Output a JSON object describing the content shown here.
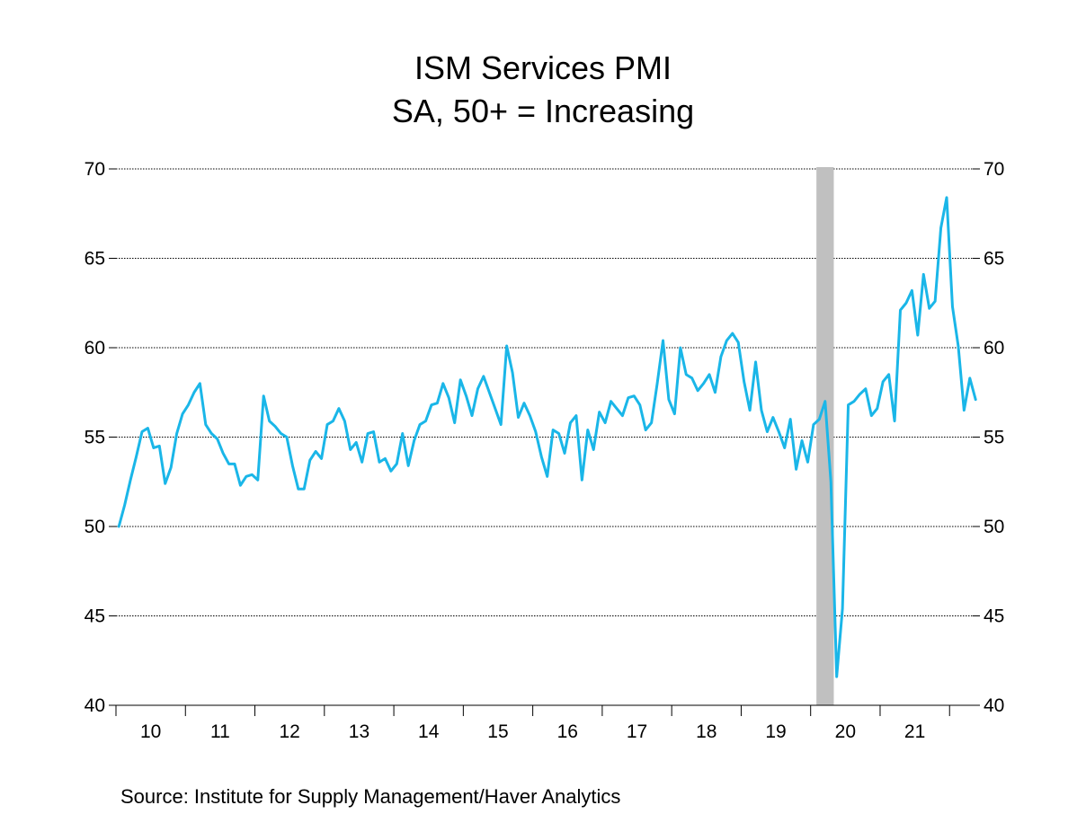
{
  "chart_data": {
    "type": "line",
    "title": "ISM Services PMI",
    "subtitle": "SA, 50+ = Increasing",
    "source": "Source:  Institute for Supply Management/Haver Analytics",
    "ylim": [
      40,
      70
    ],
    "yticks": [
      40,
      45,
      50,
      55,
      60,
      65,
      70
    ],
    "x_tick_labels": [
      "10",
      "11",
      "12",
      "13",
      "14",
      "15",
      "16",
      "17",
      "18",
      "19",
      "20",
      "21"
    ],
    "x_start": "2010-01",
    "x_end": "2022-04",
    "grid": true,
    "recession_shading": {
      "start": "2020-02",
      "end": "2020-04",
      "color": "#c0c0c0"
    },
    "series": [
      {
        "color": "#1ab6e8",
        "values": [
          50.0,
          51.2,
          52.6,
          53.9,
          55.3,
          55.5,
          54.4,
          54.5,
          52.4,
          53.3,
          55.2,
          56.3,
          56.8,
          57.5,
          58.0,
          55.7,
          55.2,
          54.9,
          54.1,
          53.5,
          53.5,
          52.3,
          52.8,
          52.9,
          52.6,
          57.3,
          55.9,
          55.6,
          55.2,
          55.0,
          53.4,
          52.1,
          52.1,
          53.7,
          54.2,
          53.8,
          55.7,
          55.9,
          56.6,
          55.9,
          54.3,
          54.7,
          53.6,
          55.2,
          55.3,
          53.6,
          53.8,
          53.1,
          53.5,
          55.2,
          53.4,
          54.8,
          55.7,
          55.9,
          56.8,
          56.9,
          58.0,
          57.2,
          55.8,
          58.2,
          57.3,
          56.2,
          57.7,
          58.4,
          57.5,
          56.6,
          55.7,
          60.1,
          58.6,
          56.1,
          56.9,
          56.2,
          55.3,
          53.9,
          52.8,
          55.4,
          55.2,
          54.1,
          55.8,
          56.2,
          52.6,
          55.4,
          54.3,
          56.4,
          55.8,
          57.0,
          56.6,
          56.2,
          57.2,
          57.3,
          56.8,
          55.4,
          55.8,
          58.0,
          60.4,
          57.1,
          56.3,
          60.0,
          58.5,
          58.3,
          57.6,
          58.0,
          58.5,
          57.5,
          59.5,
          60.4,
          60.8,
          60.3,
          58.1,
          56.5,
          59.2,
          56.5,
          55.3,
          56.1,
          55.3,
          54.4,
          56.0,
          53.2,
          54.8,
          53.6,
          55.7,
          56.0,
          57.0,
          52.5,
          41.6,
          45.4,
          56.8,
          57.0,
          57.4,
          57.7,
          56.2,
          56.6,
          58.1,
          58.5,
          55.9,
          62.1,
          62.5,
          63.2,
          60.7,
          64.1,
          62.2,
          62.6,
          66.7,
          68.4,
          62.3,
          60.1,
          56.5,
          58.3,
          57.1
        ]
      }
    ]
  }
}
